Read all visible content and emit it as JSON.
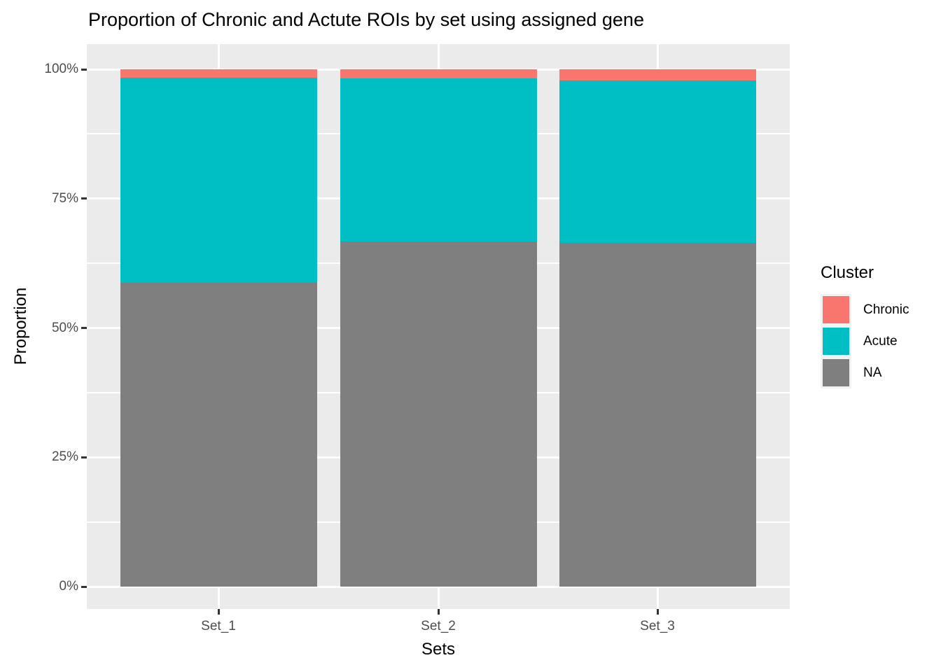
{
  "chart_data": {
    "type": "bar",
    "stacked": true,
    "orientation": "vertical",
    "title": "Proportion of Chronic and Actute ROIs by set using assigned gene",
    "xlabel": "Sets",
    "ylabel": "Proportion",
    "categories": [
      "Set_1",
      "Set_2",
      "Set_3"
    ],
    "series": [
      {
        "name": "NA",
        "color": "#7F7F7F",
        "values": [
          58.7,
          66.7,
          66.4
        ]
      },
      {
        "name": "Acute",
        "color": "#00BFC4",
        "values": [
          39.7,
          31.6,
          31.4
        ]
      },
      {
        "name": "Chronic",
        "color": "#F8766D",
        "values": [
          1.6,
          1.7,
          2.2
        ]
      }
    ],
    "value_unit": "percent of total (each bar sums to 100%)",
    "ylim": [
      0,
      100
    ],
    "yticks": [
      {
        "value": 0,
        "label": "0%"
      },
      {
        "value": 25,
        "label": "25%"
      },
      {
        "value": 50,
        "label": "50%"
      },
      {
        "value": 75,
        "label": "75%"
      },
      {
        "value": 100,
        "label": "100%"
      }
    ],
    "grid": {
      "major": true,
      "minor": true
    },
    "legend": {
      "title": "Cluster",
      "position": "right",
      "entries": [
        {
          "label": "Chronic",
          "color": "#F8766D"
        },
        {
          "label": "Acute",
          "color": "#00BFC4"
        },
        {
          "label": "NA",
          "color": "#7F7F7F"
        }
      ]
    }
  },
  "style": {
    "background": "#FFFFFF",
    "panel_bg": "#EBEBEB",
    "grid_color": "#FFFFFF",
    "tick_color": "#333333",
    "tick_label_color": "#4D4D4D",
    "text_color": "#000000",
    "legend_key_bg": "#F2F2F2"
  }
}
